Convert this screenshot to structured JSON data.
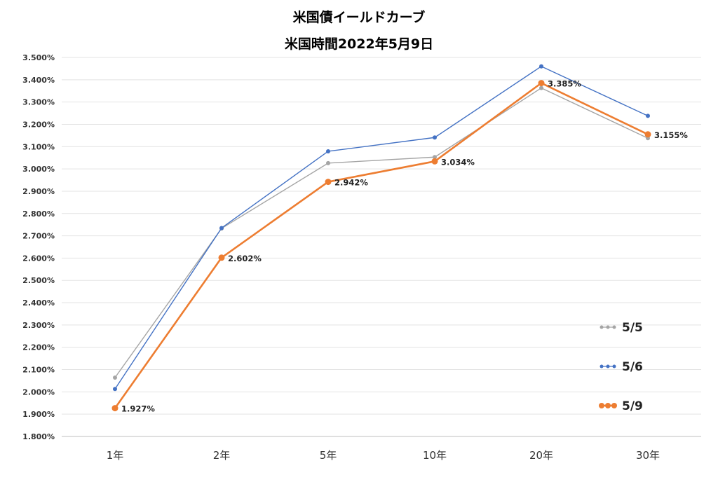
{
  "chart_data": {
    "type": "line",
    "title": "米国債イールドカーブ",
    "subtitle": "米国時間2022年5月9日",
    "categories": [
      "1年",
      "2年",
      "5年",
      "10年",
      "20年",
      "30年"
    ],
    "y_ticks": [
      "1.800%",
      "1.900%",
      "2.000%",
      "2.100%",
      "2.200%",
      "2.300%",
      "2.400%",
      "2.500%",
      "2.600%",
      "2.700%",
      "2.800%",
      "2.900%",
      "3.000%",
      "3.100%",
      "3.200%",
      "3.300%",
      "3.400%",
      "3.500%"
    ],
    "ylim": [
      1.8,
      3.5
    ],
    "grid": true,
    "legend_position": "right",
    "series": [
      {
        "name": "5/5",
        "color": "#a5a5a5",
        "values": [
          2.064,
          2.733,
          3.026,
          3.053,
          3.363,
          3.138
        ]
      },
      {
        "name": "5/6",
        "color": "#4472c4",
        "values": [
          2.013,
          2.735,
          3.079,
          3.141,
          3.46,
          3.238
        ]
      },
      {
        "name": "5/9",
        "color": "#ed7d31",
        "values": [
          1.927,
          2.602,
          2.942,
          3.034,
          3.385,
          3.155
        ],
        "labels": [
          "1.927%",
          "2.602%",
          "2.942%",
          "3.034%",
          "3.385%",
          "3.155%"
        ]
      }
    ]
  }
}
